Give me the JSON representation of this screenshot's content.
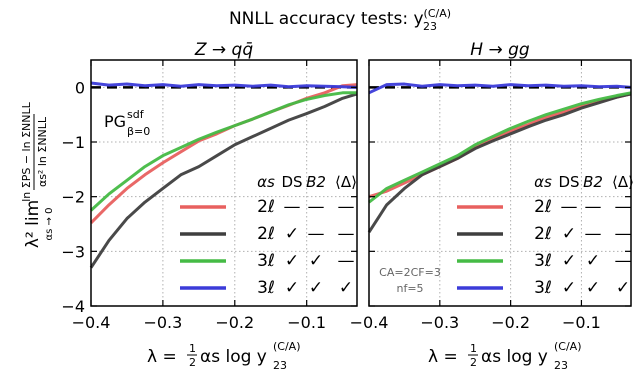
{
  "figure": {
    "title": "NNLL accuracy tests: y",
    "title_sup": "(C/A)",
    "title_sub": "23",
    "ylabel_lhs": "λ² lim",
    "ylabel_lim_sub": "αs → 0",
    "ylabel_num": "ln ΣPS − ln ΣNNLL",
    "ylabel_den": "αs² ln ΣNNLL",
    "xlabel_prefix": "λ = ",
    "xlabel_half": "1",
    "xlabel_half_den": "2",
    "xlabel_body": "αs log y",
    "xlabel_sub": "23",
    "xlabel_sup": "(C/A)"
  },
  "legend": {
    "headers": [
      "αs",
      "DS",
      "B2",
      "⟨Δ⟩"
    ],
    "rows": [
      {
        "label": "2ℓ",
        "DS": "—",
        "B2": "—",
        "Delta": "—",
        "color": "#e8605f"
      },
      {
        "label": "2ℓ",
        "DS": "✓",
        "B2": "—",
        "Delta": "—",
        "color": "#3f3f3f"
      },
      {
        "label": "3ℓ",
        "DS": "✓",
        "B2": "✓",
        "Delta": "—",
        "color": "#45bb45"
      },
      {
        "label": "3ℓ",
        "DS": "✓",
        "B2": "✓",
        "Delta": "✓",
        "color": "#3b3bd9"
      }
    ]
  },
  "annotations": {
    "pg_label": "PG",
    "pg_sup": "sdf",
    "pg_sub": "β=0",
    "casimir_line1": "CA=2CF=3",
    "casimir_line2": "nf=5"
  },
  "chart_data": [
    {
      "type": "line",
      "title": "Z → qq̄",
      "xlabel": "λ = ½ αs log y23(C/A)",
      "ylabel": "λ² lim αs→0 (ln ΣPS − ln ΣNNLL)/(αs² ln ΣNNLL)",
      "xlim": [
        -0.4,
        -0.03
      ],
      "ylim": [
        -4,
        0.5
      ],
      "xticks": [
        -0.4,
        -0.3,
        -0.2,
        -0.1
      ],
      "yticks": [
        -4,
        -3,
        -2,
        -1,
        0
      ],
      "reference_line": 0,
      "grid": true,
      "x": [
        -0.4,
        -0.375,
        -0.35,
        -0.325,
        -0.3,
        -0.275,
        -0.25,
        -0.225,
        -0.2,
        -0.175,
        -0.15,
        -0.125,
        -0.1,
        -0.075,
        -0.05,
        -0.03
      ],
      "series": [
        {
          "name": "2ℓ",
          "color": "#e8605f",
          "values": [
            -2.48,
            -2.15,
            -1.85,
            -1.6,
            -1.38,
            -1.18,
            -0.98,
            -0.85,
            -0.7,
            -0.58,
            -0.45,
            -0.33,
            -0.2,
            -0.1,
            0.03,
            0.05
          ]
        },
        {
          "name": "2ℓ DS",
          "color": "#3f3f3f",
          "values": [
            -3.3,
            -2.8,
            -2.4,
            -2.1,
            -1.85,
            -1.6,
            -1.45,
            -1.25,
            -1.05,
            -0.9,
            -0.75,
            -0.6,
            -0.48,
            -0.35,
            -0.2,
            -0.12
          ]
        },
        {
          "name": "3ℓ DS B2",
          "color": "#45bb45",
          "values": [
            -2.25,
            -1.95,
            -1.7,
            -1.45,
            -1.25,
            -1.1,
            -0.95,
            -0.82,
            -0.7,
            -0.58,
            -0.45,
            -0.32,
            -0.22,
            -0.15,
            -0.1,
            -0.1
          ]
        },
        {
          "name": "3ℓ DS B2 ⟨Δ⟩",
          "color": "#3b3bd9",
          "values": [
            0.08,
            0.04,
            0.06,
            0.03,
            0.05,
            0.02,
            0.05,
            0.03,
            0.04,
            0.02,
            0.04,
            0.01,
            0.03,
            0.02,
            0.01,
            0.0
          ]
        }
      ]
    },
    {
      "type": "line",
      "title": "H → gg",
      "xlabel": "λ = ½ αs log y23(C/A)",
      "xlim": [
        -0.4,
        -0.03
      ],
      "ylim": [
        -4,
        0.5
      ],
      "xticks": [
        -0.4,
        -0.3,
        -0.2,
        -0.1
      ],
      "yticks": [
        -4,
        -3,
        -2,
        -1,
        0
      ],
      "reference_line": 0,
      "grid": true,
      "x": [
        -0.4,
        -0.375,
        -0.35,
        -0.325,
        -0.3,
        -0.275,
        -0.25,
        -0.225,
        -0.2,
        -0.175,
        -0.15,
        -0.125,
        -0.1,
        -0.075,
        -0.05,
        -0.03
      ],
      "series": [
        {
          "name": "2ℓ",
          "color": "#e8605f",
          "values": [
            -2.0,
            -1.9,
            -1.75,
            -1.6,
            -1.45,
            -1.3,
            -1.1,
            -0.95,
            -0.8,
            -0.68,
            -0.55,
            -0.45,
            -0.35,
            -0.25,
            -0.18,
            -0.12
          ]
        },
        {
          "name": "2ℓ DS",
          "color": "#3f3f3f",
          "values": [
            -2.65,
            -2.15,
            -1.85,
            -1.6,
            -1.45,
            -1.3,
            -1.12,
            -0.98,
            -0.85,
            -0.72,
            -0.6,
            -0.5,
            -0.38,
            -0.28,
            -0.18,
            -0.12
          ]
        },
        {
          "name": "3ℓ DS B2",
          "color": "#45bb45",
          "values": [
            -2.1,
            -1.85,
            -1.7,
            -1.55,
            -1.4,
            -1.25,
            -1.05,
            -0.9,
            -0.75,
            -0.62,
            -0.5,
            -0.4,
            -0.3,
            -0.22,
            -0.15,
            -0.1
          ]
        },
        {
          "name": "3ℓ DS B2 ⟨Δ⟩",
          "color": "#3b3bd9",
          "values": [
            -0.1,
            0.05,
            0.06,
            0.02,
            0.05,
            0.03,
            0.04,
            0.02,
            0.05,
            0.03,
            0.04,
            0.02,
            0.03,
            0.01,
            0.02,
            0.0
          ]
        }
      ]
    }
  ]
}
